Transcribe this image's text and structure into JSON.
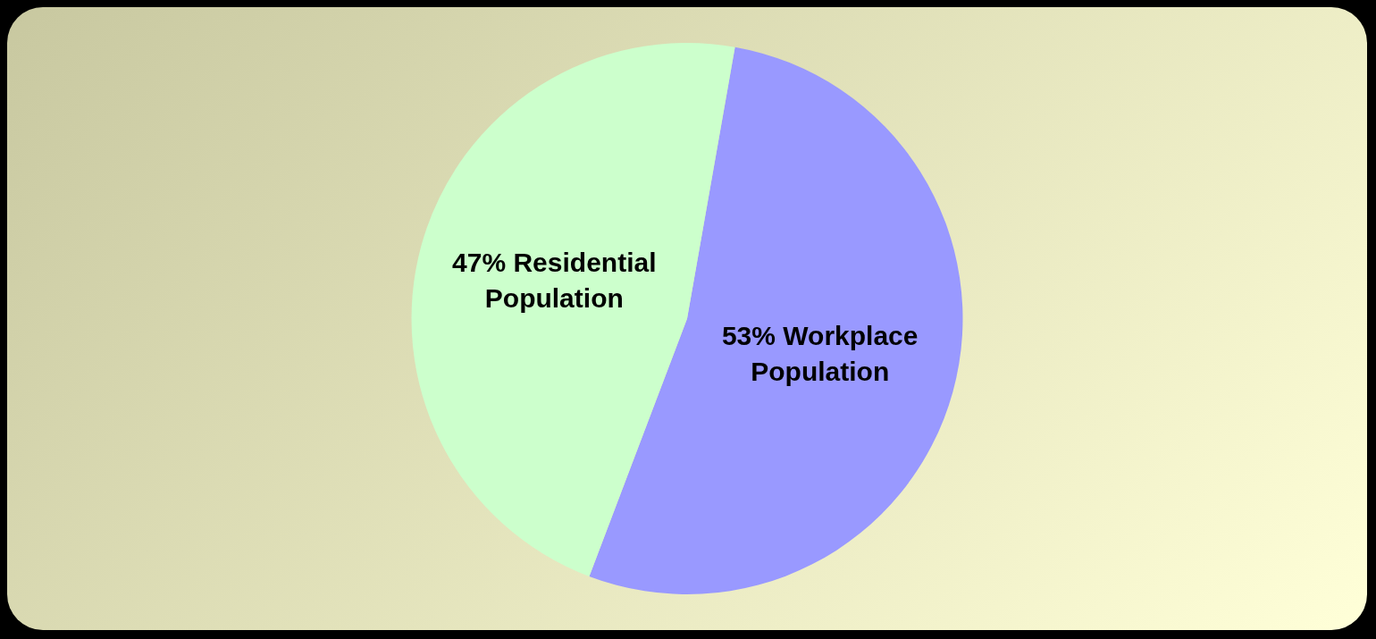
{
  "chart_data": {
    "type": "pie",
    "categories": [
      "Workplace Population",
      "Residential Population"
    ],
    "values": [
      53,
      47
    ],
    "value_labels": [
      "53%",
      "47%"
    ],
    "colors": [
      "#9999ff",
      "#ccffcc"
    ],
    "legend": false
  }
}
